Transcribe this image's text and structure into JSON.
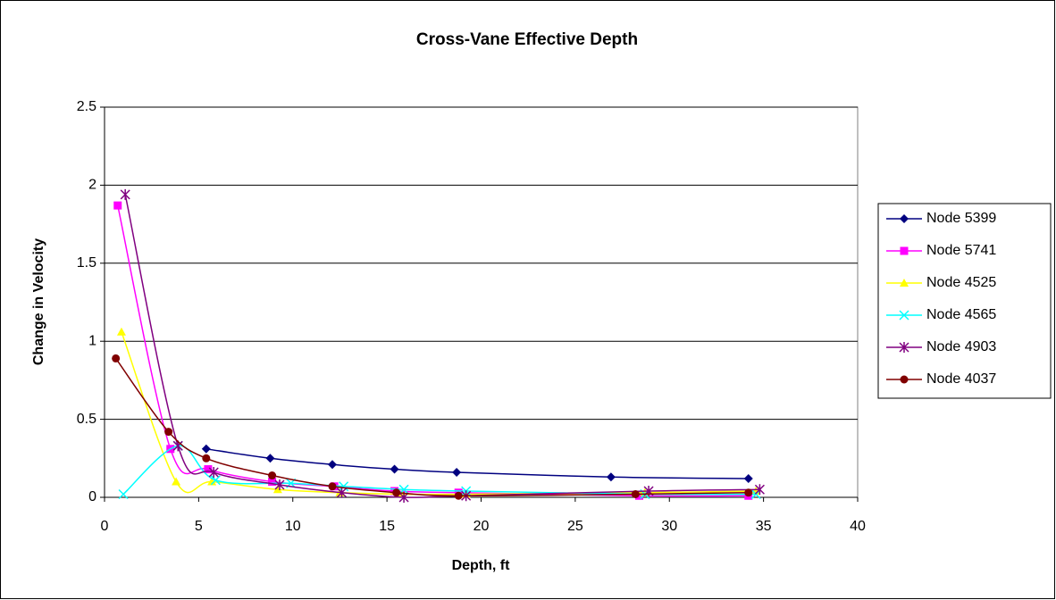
{
  "chart_data": {
    "type": "scatter",
    "title": "Cross-Vane Effective Depth",
    "x_label": "Depth, ft",
    "y_label": "Change in Velocity",
    "xlim": [
      0,
      40
    ],
    "xticks": [
      0,
      5,
      10,
      15,
      20,
      25,
      30,
      35,
      40
    ],
    "ylim": [
      0,
      2.5
    ],
    "yticks": [
      0,
      0.5,
      1,
      1.5,
      2,
      2.5
    ],
    "grid": true,
    "smooth": true,
    "legend": "right",
    "series": [
      {
        "name": "Node 5399",
        "color": "#000080",
        "marker": "diamond",
        "x": [
          5.4,
          8.8,
          12.1,
          15.4,
          18.7,
          26.9,
          34.2
        ],
        "values": [
          0.31,
          0.25,
          0.21,
          0.18,
          0.16,
          0.13,
          0.12
        ]
      },
      {
        "name": "Node 5741",
        "color": "#ff00ff",
        "marker": "square",
        "x": [
          0.7,
          3.5,
          5.5,
          8.9,
          12.2,
          15.4,
          18.8,
          28.4,
          34.2
        ],
        "values": [
          1.87,
          0.31,
          0.18,
          0.1,
          0.07,
          0.04,
          0.03,
          0.01,
          0.01
        ]
      },
      {
        "name": "Node 4525",
        "color": "#ffff00",
        "marker": "triangle",
        "x": [
          0.9,
          3.8,
          5.7,
          9.2,
          12.5,
          15.8,
          19.2,
          28.7,
          34.6
        ],
        "values": [
          1.06,
          0.1,
          0.1,
          0.05,
          0.03,
          0.02,
          0.02,
          0.03,
          0.04
        ]
      },
      {
        "name": "Node 4565",
        "color": "#00ffff",
        "marker": "x",
        "x": [
          1.0,
          3.9,
          5.9,
          9.9,
          12.7,
          15.9,
          19.2,
          28.7,
          34.6
        ],
        "values": [
          0.02,
          0.33,
          0.11,
          0.09,
          0.07,
          0.05,
          0.04,
          0.02,
          0.02
        ]
      },
      {
        "name": "Node 4903",
        "color": "#800080",
        "marker": "star",
        "x": [
          1.1,
          3.9,
          5.8,
          9.3,
          12.6,
          15.9,
          19.2,
          28.9,
          34.8
        ],
        "values": [
          1.94,
          0.33,
          0.16,
          0.08,
          0.03,
          0.0,
          0.01,
          0.04,
          0.05
        ]
      },
      {
        "name": "Node 4037",
        "color": "#800000",
        "marker": "circle",
        "x": [
          0.6,
          3.4,
          5.4,
          8.9,
          12.1,
          15.5,
          18.8,
          28.2,
          34.2
        ],
        "values": [
          0.89,
          0.42,
          0.25,
          0.14,
          0.07,
          0.03,
          0.01,
          0.02,
          0.03
        ]
      }
    ]
  }
}
